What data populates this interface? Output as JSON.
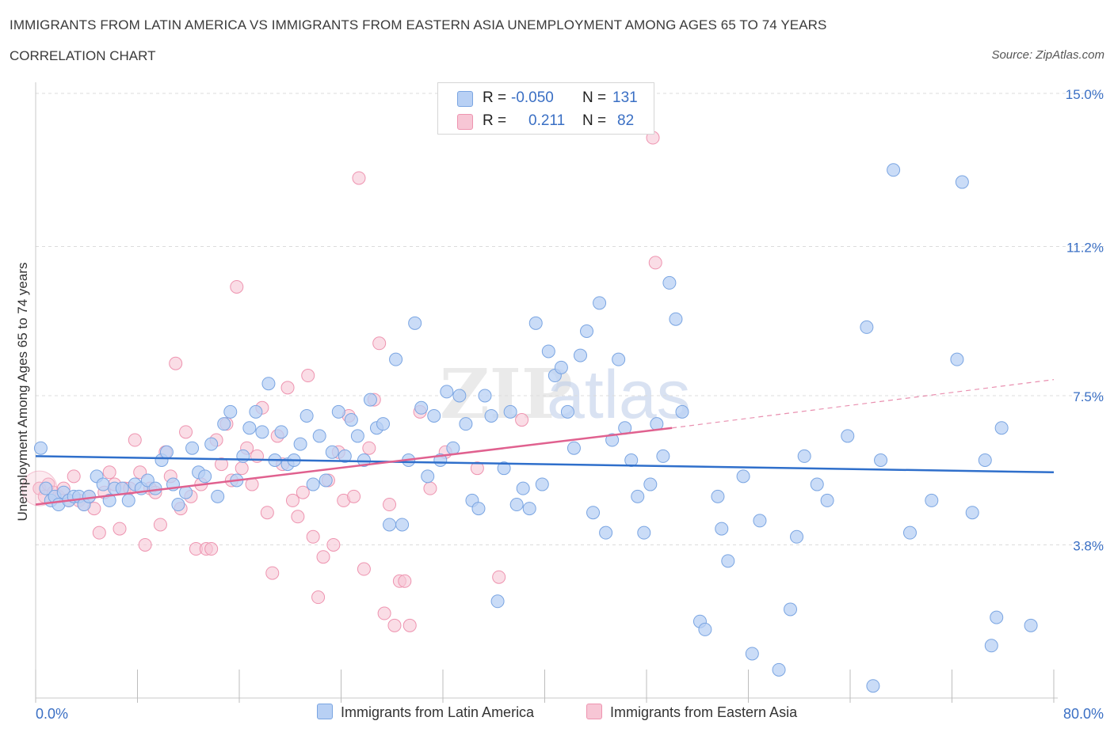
{
  "header": {
    "title": "IMMIGRANTS FROM LATIN AMERICA VS IMMIGRANTS FROM EASTERN ASIA UNEMPLOYMENT AMONG AGES 65 TO 74 YEARS",
    "subtitle": "CORRELATION CHART",
    "source": "Source: ZipAtlas.com"
  },
  "legend": {
    "r_label": "R =",
    "n_label": "N =",
    "series1": {
      "r": "-0.050",
      "n": "131"
    },
    "series2": {
      "r": "0.211",
      "n": "82"
    }
  },
  "watermark": {
    "zip": "ZIP",
    "atlas": "atlas"
  },
  "colors": {
    "blue_fill": "#b8d0f4",
    "blue_stroke": "#7aa5e2",
    "blue_line": "#2f6fcb",
    "pink_fill": "#f7c6d5",
    "pink_stroke": "#ee94b0",
    "pink_line": "#e0618f",
    "axis_text": "#3a6fc4"
  },
  "chart_data": {
    "type": "scatter",
    "title": "IMMIGRANTS FROM LATIN AMERICA VS IMMIGRANTS FROM EASTERN ASIA UNEMPLOYMENT AMONG AGES 65 TO 74 YEARS",
    "xlabel": "",
    "ylabel": "Unemployment Among Ages 65 to 74 years",
    "xlim": [
      0,
      80
    ],
    "ylim": [
      0,
      15
    ],
    "x_tick_labels": [
      "0.0%",
      "80.0%"
    ],
    "y_ticks": [
      3.8,
      7.5,
      11.2,
      15.0
    ],
    "y_tick_labels": [
      "3.8%",
      "7.5%",
      "11.2%",
      "15.0%"
    ],
    "legend_position": "top-center",
    "series": [
      {
        "name": "Immigrants from Latin America",
        "r": -0.05,
        "n": 131,
        "trend": {
          "x": [
            0,
            80
          ],
          "y": [
            6.0,
            5.6
          ],
          "dashed_extension": false
        },
        "points": [
          [
            0.4,
            6.2
          ],
          [
            0.8,
            5.2
          ],
          [
            1.2,
            4.9
          ],
          [
            1.5,
            5.0
          ],
          [
            1.8,
            4.8
          ],
          [
            2.2,
            5.1
          ],
          [
            2.6,
            4.9
          ],
          [
            3.0,
            5.0
          ],
          [
            3.4,
            5.0
          ],
          [
            3.8,
            4.8
          ],
          [
            4.2,
            5.0
          ],
          [
            4.8,
            5.5
          ],
          [
            5.3,
            5.3
          ],
          [
            5.8,
            4.9
          ],
          [
            6.2,
            5.2
          ],
          [
            6.8,
            5.2
          ],
          [
            7.3,
            4.9
          ],
          [
            7.8,
            5.3
          ],
          [
            8.3,
            5.2
          ],
          [
            8.8,
            5.4
          ],
          [
            9.4,
            5.2
          ],
          [
            9.9,
            5.9
          ],
          [
            10.3,
            6.1
          ],
          [
            10.8,
            5.3
          ],
          [
            11.2,
            4.8
          ],
          [
            11.8,
            5.1
          ],
          [
            12.3,
            6.2
          ],
          [
            12.8,
            5.6
          ],
          [
            13.3,
            5.5
          ],
          [
            13.8,
            6.3
          ],
          [
            14.3,
            5.0
          ],
          [
            14.8,
            6.8
          ],
          [
            15.3,
            7.1
          ],
          [
            15.8,
            5.4
          ],
          [
            16.3,
            6.0
          ],
          [
            16.8,
            6.7
          ],
          [
            17.3,
            7.1
          ],
          [
            17.8,
            6.6
          ],
          [
            18.3,
            7.8
          ],
          [
            18.8,
            5.9
          ],
          [
            19.3,
            6.6
          ],
          [
            19.8,
            5.8
          ],
          [
            20.3,
            5.9
          ],
          [
            20.8,
            6.3
          ],
          [
            21.3,
            7.0
          ],
          [
            21.8,
            5.3
          ],
          [
            22.3,
            6.5
          ],
          [
            22.8,
            5.4
          ],
          [
            23.3,
            6.1
          ],
          [
            23.8,
            7.1
          ],
          [
            24.3,
            6.0
          ],
          [
            24.8,
            6.9
          ],
          [
            25.3,
            6.5
          ],
          [
            25.8,
            5.9
          ],
          [
            26.3,
            7.4
          ],
          [
            26.8,
            6.7
          ],
          [
            27.3,
            6.8
          ],
          [
            27.8,
            4.3
          ],
          [
            28.3,
            8.4
          ],
          [
            28.8,
            4.3
          ],
          [
            29.3,
            5.9
          ],
          [
            29.8,
            9.3
          ],
          [
            30.3,
            7.2
          ],
          [
            30.8,
            5.5
          ],
          [
            31.3,
            7.0
          ],
          [
            31.8,
            5.9
          ],
          [
            32.3,
            7.6
          ],
          [
            32.8,
            6.2
          ],
          [
            33.3,
            7.5
          ],
          [
            33.8,
            6.8
          ],
          [
            34.3,
            4.9
          ],
          [
            34.8,
            4.7
          ],
          [
            35.3,
            7.5
          ],
          [
            35.8,
            7.0
          ],
          [
            36.3,
            2.4
          ],
          [
            36.8,
            5.7
          ],
          [
            37.3,
            7.1
          ],
          [
            37.8,
            4.8
          ],
          [
            38.3,
            5.2
          ],
          [
            38.8,
            4.7
          ],
          [
            39.3,
            9.3
          ],
          [
            39.8,
            5.3
          ],
          [
            40.3,
            8.6
          ],
          [
            40.8,
            8.0
          ],
          [
            41.3,
            8.2
          ],
          [
            41.8,
            7.1
          ],
          [
            42.3,
            6.2
          ],
          [
            42.8,
            8.5
          ],
          [
            43.3,
            9.1
          ],
          [
            43.8,
            4.6
          ],
          [
            44.3,
            9.8
          ],
          [
            44.8,
            4.1
          ],
          [
            45.3,
            6.4
          ],
          [
            45.8,
            8.4
          ],
          [
            46.3,
            6.7
          ],
          [
            46.8,
            5.9
          ],
          [
            47.3,
            5.0
          ],
          [
            47.8,
            4.1
          ],
          [
            48.3,
            5.3
          ],
          [
            48.8,
            6.8
          ],
          [
            49.3,
            6.0
          ],
          [
            49.8,
            10.3
          ],
          [
            50.3,
            9.4
          ],
          [
            50.8,
            7.1
          ],
          [
            52.2,
            1.9
          ],
          [
            52.6,
            1.7
          ],
          [
            53.6,
            5.0
          ],
          [
            53.9,
            4.2
          ],
          [
            54.4,
            3.4
          ],
          [
            55.6,
            5.5
          ],
          [
            56.3,
            1.1
          ],
          [
            56.9,
            4.4
          ],
          [
            58.4,
            0.7
          ],
          [
            59.3,
            2.2
          ],
          [
            59.8,
            4.0
          ],
          [
            60.4,
            6.0
          ],
          [
            61.4,
            5.3
          ],
          [
            62.2,
            4.9
          ],
          [
            63.8,
            6.5
          ],
          [
            65.3,
            9.2
          ],
          [
            65.8,
            0.3
          ],
          [
            66.4,
            5.9
          ],
          [
            67.4,
            13.1
          ],
          [
            68.7,
            4.1
          ],
          [
            70.4,
            4.9
          ],
          [
            72.4,
            8.4
          ],
          [
            72.8,
            12.8
          ],
          [
            73.6,
            4.6
          ],
          [
            74.6,
            5.9
          ],
          [
            75.1,
            1.3
          ],
          [
            75.5,
            2.0
          ],
          [
            75.9,
            6.7
          ],
          [
            78.2,
            1.8
          ]
        ]
      },
      {
        "name": "Immigrants from Eastern Asia",
        "r": 0.211,
        "n": 82,
        "trend": {
          "x": [
            0,
            50
          ],
          "y": [
            4.8,
            6.7
          ],
          "dashed_to": [
            80,
            7.9
          ]
        },
        "points": [
          [
            0.3,
            5.2
          ],
          [
            0.7,
            5.0
          ],
          [
            1.0,
            5.3
          ],
          [
            1.4,
            5.1
          ],
          [
            1.8,
            5.0
          ],
          [
            2.2,
            5.2
          ],
          [
            2.6,
            4.9
          ],
          [
            3.0,
            5.5
          ],
          [
            3.4,
            4.9
          ],
          [
            3.8,
            4.8
          ],
          [
            4.2,
            5.0
          ],
          [
            4.6,
            4.7
          ],
          [
            5.0,
            4.1
          ],
          [
            5.4,
            5.1
          ],
          [
            5.8,
            5.6
          ],
          [
            6.2,
            5.3
          ],
          [
            6.6,
            4.2
          ],
          [
            7.0,
            5.2
          ],
          [
            7.4,
            5.2
          ],
          [
            7.8,
            6.4
          ],
          [
            8.2,
            5.6
          ],
          [
            8.6,
            3.8
          ],
          [
            9.0,
            5.2
          ],
          [
            9.4,
            5.1
          ],
          [
            9.8,
            4.3
          ],
          [
            10.2,
            6.1
          ],
          [
            10.6,
            5.5
          ],
          [
            11.0,
            8.3
          ],
          [
            11.4,
            4.7
          ],
          [
            11.8,
            6.6
          ],
          [
            12.2,
            5.0
          ],
          [
            12.6,
            3.7
          ],
          [
            13.0,
            5.3
          ],
          [
            13.4,
            3.7
          ],
          [
            13.8,
            3.7
          ],
          [
            14.2,
            6.4
          ],
          [
            14.6,
            5.8
          ],
          [
            15.0,
            6.8
          ],
          [
            15.4,
            5.4
          ],
          [
            15.8,
            10.2
          ],
          [
            16.2,
            5.7
          ],
          [
            16.6,
            6.2
          ],
          [
            17.0,
            5.3
          ],
          [
            17.4,
            6.0
          ],
          [
            17.8,
            7.2
          ],
          [
            18.2,
            4.6
          ],
          [
            18.6,
            3.1
          ],
          [
            19.0,
            6.5
          ],
          [
            19.4,
            5.8
          ],
          [
            19.8,
            7.7
          ],
          [
            20.2,
            4.9
          ],
          [
            20.6,
            4.5
          ],
          [
            21.0,
            5.1
          ],
          [
            21.4,
            8.0
          ],
          [
            21.8,
            4.0
          ],
          [
            22.2,
            2.5
          ],
          [
            22.6,
            3.5
          ],
          [
            23.0,
            5.4
          ],
          [
            23.4,
            3.8
          ],
          [
            23.8,
            6.1
          ],
          [
            24.2,
            4.9
          ],
          [
            24.6,
            7.0
          ],
          [
            25.0,
            5.0
          ],
          [
            25.4,
            12.9
          ],
          [
            25.8,
            3.2
          ],
          [
            26.2,
            6.2
          ],
          [
            26.6,
            7.4
          ],
          [
            27.0,
            8.8
          ],
          [
            27.4,
            2.1
          ],
          [
            27.8,
            4.8
          ],
          [
            28.2,
            1.8
          ],
          [
            28.6,
            2.9
          ],
          [
            29.0,
            2.9
          ],
          [
            29.4,
            1.8
          ],
          [
            30.2,
            7.1
          ],
          [
            31.0,
            5.2
          ],
          [
            32.2,
            6.1
          ],
          [
            34.7,
            5.7
          ],
          [
            36.4,
            3.0
          ],
          [
            38.2,
            6.9
          ],
          [
            48.7,
            10.8
          ],
          [
            48.5,
            13.9
          ]
        ]
      }
    ]
  },
  "bottom_legend": {
    "series1": "Immigrants from Latin America",
    "series2": "Immigrants from Eastern Asia"
  }
}
